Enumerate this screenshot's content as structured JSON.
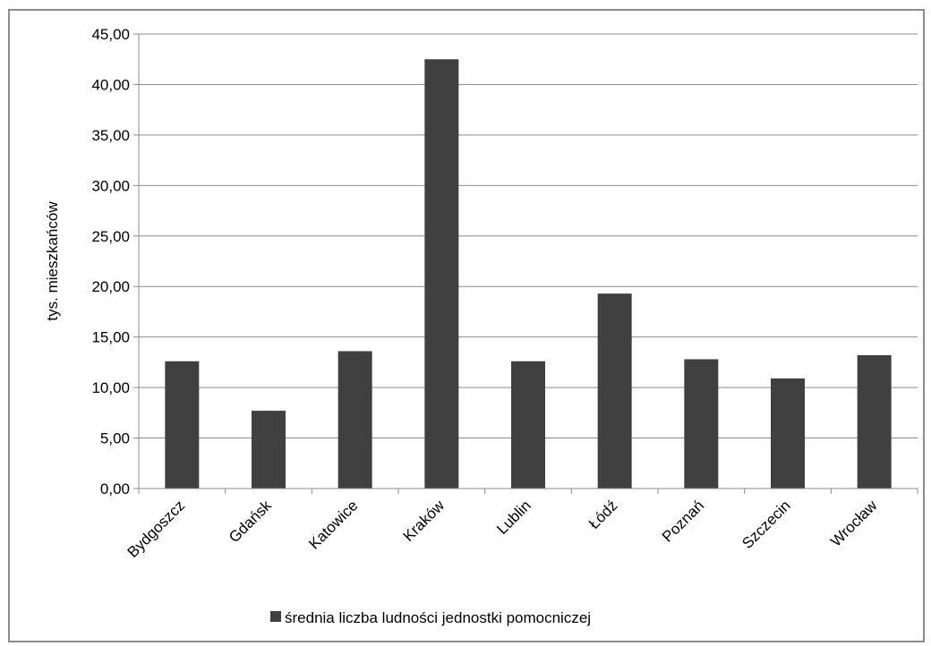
{
  "chart_data": {
    "type": "bar",
    "categories": [
      "Bydgoszcz",
      "Gdańsk",
      "Katowice",
      "Kraków",
      "Lublin",
      "Łódź",
      "Poznań",
      "Szczecin",
      "Wrocław"
    ],
    "series": [
      {
        "name": "średnia liczba ludności jednostki pomocniczej",
        "values": [
          12.6,
          7.7,
          13.6,
          42.5,
          12.6,
          19.3,
          12.8,
          10.9,
          13.2
        ]
      }
    ],
    "title": "",
    "xlabel": "",
    "ylabel": "tys. mieszkańców",
    "ylim": [
      0,
      45
    ],
    "ytick_step": 5,
    "ytick_labels": [
      "0,00",
      "5,00",
      "10,00",
      "15,00",
      "20,00",
      "25,00",
      "30,00",
      "35,00",
      "40,00",
      "45,00"
    ],
    "grid": "horizontal",
    "legend_position": "bottom",
    "colors": {
      "bar": "#404040",
      "grid": "#8c8c8c",
      "axis": "#8c8c8c",
      "frame": "#8c8c8c"
    }
  }
}
